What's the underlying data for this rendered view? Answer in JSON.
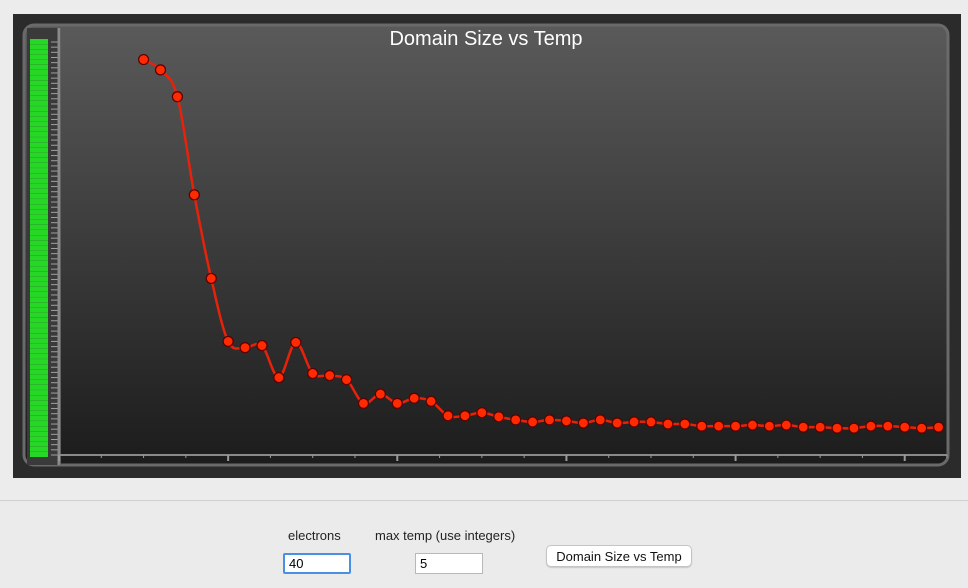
{
  "controls": {
    "electrons_label": "electrons",
    "electrons_value": "40",
    "max_temp_label": "max temp (use integers)",
    "max_temp_value": "5",
    "run_button_label": "Domain Size vs Temp"
  },
  "colors": {
    "line": "#e8220a",
    "marker_fill": "#ff2a00",
    "marker_stroke": "#5a0000",
    "y_tick_labels": "#22ff22"
  },
  "chart_data": {
    "type": "line",
    "title": "Domain Size vs Temp",
    "xlabel": "",
    "ylabel": "",
    "smooth": true,
    "grid": false,
    "xlim": [
      0,
      5.25
    ],
    "ylim": [
      0,
      40
    ],
    "series": [
      {
        "values": [
          [
            0.5,
            38.3
          ],
          [
            0.6,
            37.3
          ],
          [
            0.7,
            34.7
          ],
          [
            0.8,
            25.2
          ],
          [
            0.9,
            17.1
          ],
          [
            1.0,
            11.0
          ],
          [
            1.1,
            10.4
          ],
          [
            1.2,
            10.6
          ],
          [
            1.3,
            7.5
          ],
          [
            1.4,
            10.9
          ],
          [
            1.5,
            7.9
          ],
          [
            1.6,
            7.7
          ],
          [
            1.7,
            7.3
          ],
          [
            1.8,
            5.0
          ],
          [
            1.9,
            5.9
          ],
          [
            2.0,
            5.0
          ],
          [
            2.1,
            5.5
          ],
          [
            2.2,
            5.2
          ],
          [
            2.3,
            3.8
          ],
          [
            2.4,
            3.8
          ],
          [
            2.5,
            4.1
          ],
          [
            2.6,
            3.7
          ],
          [
            2.7,
            3.4
          ],
          [
            2.8,
            3.2
          ],
          [
            2.9,
            3.4
          ],
          [
            3.0,
            3.3
          ],
          [
            3.1,
            3.1
          ],
          [
            3.2,
            3.4
          ],
          [
            3.3,
            3.1
          ],
          [
            3.4,
            3.2
          ],
          [
            3.5,
            3.2
          ],
          [
            3.6,
            3.0
          ],
          [
            3.7,
            3.0
          ],
          [
            3.8,
            2.8
          ],
          [
            3.9,
            2.8
          ],
          [
            4.0,
            2.8
          ],
          [
            4.1,
            2.9
          ],
          [
            4.2,
            2.8
          ],
          [
            4.3,
            2.9
          ],
          [
            4.4,
            2.7
          ],
          [
            4.5,
            2.7
          ],
          [
            4.6,
            2.6
          ],
          [
            4.7,
            2.6
          ],
          [
            4.8,
            2.8
          ],
          [
            4.9,
            2.8
          ],
          [
            5.0,
            2.7
          ],
          [
            5.1,
            2.6
          ],
          [
            5.2,
            2.7
          ]
        ]
      }
    ]
  }
}
